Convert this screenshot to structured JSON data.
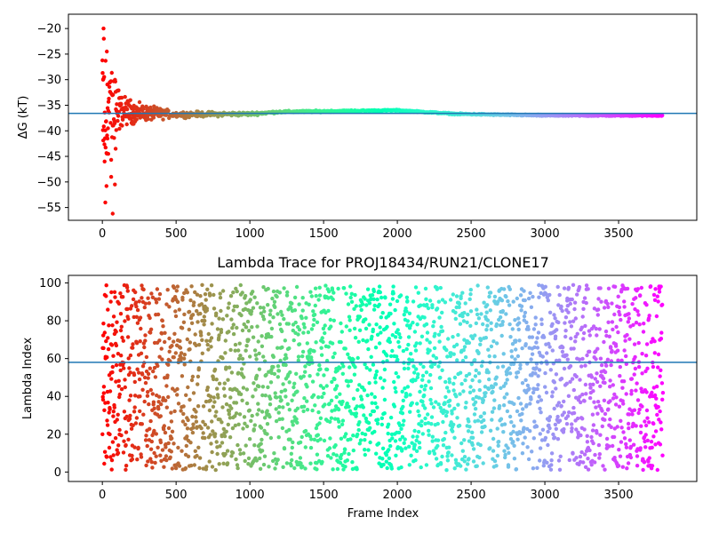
{
  "chart_data": [
    {
      "type": "scatter",
      "title": "",
      "xlabel": "",
      "ylabel": "ΔG (kT)",
      "xlim": [
        -230,
        4030
      ],
      "ylim": [
        -57.5,
        -17.2
      ],
      "xticks": [
        0,
        500,
        1000,
        1500,
        2000,
        2500,
        3000,
        3500
      ],
      "yticks": [
        -20,
        -25,
        -30,
        -35,
        -40,
        -45,
        -50,
        -55
      ],
      "x_tick_labels": [
        "0",
        "500",
        "1000",
        "1500",
        "2000",
        "2500",
        "3000",
        "3500"
      ],
      "y_tick_labels": [
        "−20",
        "−25",
        "−30",
        "−35",
        "−40",
        "−45",
        "−50",
        "−55"
      ],
      "n_frames": 3800,
      "colormap": "rainbow (red at frame 0 → violet at last frame)",
      "reference_line": {
        "y": -36.6,
        "color": "#1f77b4"
      },
      "series": [
        {
          "envelope": [
            {
              "x": 0,
              "y": -36.6,
              "spread": 19
            },
            {
              "x": 100,
              "y": -36.0,
              "spread": 5
            },
            {
              "x": 250,
              "y": -36.5,
              "spread": 2.5
            },
            {
              "x": 500,
              "y": -36.8,
              "spread": 0.9
            },
            {
              "x": 1000,
              "y": -36.7,
              "spread": 0.5
            },
            {
              "x": 1200,
              "y": -36.3,
              "spread": 0.3
            },
            {
              "x": 2000,
              "y": -36.0,
              "spread": 0.2
            },
            {
              "x": 2400,
              "y": -36.7,
              "spread": 0.2
            },
            {
              "x": 3000,
              "y": -37.0,
              "spread": 0.2
            },
            {
              "x": 3800,
              "y": -37.0,
              "spread": 0.2
            }
          ],
          "highlighted_points": [
            {
              "x": 8,
              "y": -20.0
            },
            {
              "x": 10,
              "y": -22.0
            },
            {
              "x": 30,
              "y": -24.5
            },
            {
              "x": 22,
              "y": -26.3
            },
            {
              "x": 5,
              "y": -30.0
            },
            {
              "x": 50,
              "y": -30.5
            },
            {
              "x": 15,
              "y": -46.0
            },
            {
              "x": 20,
              "y": -54.0
            },
            {
              "x": 28,
              "y": -50.8
            },
            {
              "x": 60,
              "y": -49.0
            },
            {
              "x": 85,
              "y": -50.5
            },
            {
              "x": 70,
              "y": -56.2
            },
            {
              "x": 40,
              "y": -44.5
            },
            {
              "x": 90,
              "y": -43.5
            },
            {
              "x": 35,
              "y": -41.5
            }
          ]
        }
      ]
    },
    {
      "type": "scatter",
      "title": "Lambda Trace for PROJ18434/RUN21/CLONE17",
      "xlabel": "Frame Index",
      "ylabel": "Lambda Index",
      "xlim": [
        -230,
        4030
      ],
      "ylim": [
        -5,
        104
      ],
      "xticks": [
        0,
        500,
        1000,
        1500,
        2000,
        2500,
        3000,
        3500
      ],
      "yticks": [
        0,
        20,
        40,
        60,
        80,
        100
      ],
      "x_tick_labels": [
        "0",
        "500",
        "1000",
        "1500",
        "2000",
        "2500",
        "3000",
        "3500"
      ],
      "y_tick_labels": [
        "0",
        "20",
        "40",
        "60",
        "80",
        "100"
      ],
      "n_frames": 3800,
      "lambda_range": [
        1,
        99
      ],
      "colormap": "rainbow (red at frame 0 → violet at last frame)",
      "reference_line": {
        "y": 58,
        "color": "#1f77b4"
      }
    }
  ]
}
